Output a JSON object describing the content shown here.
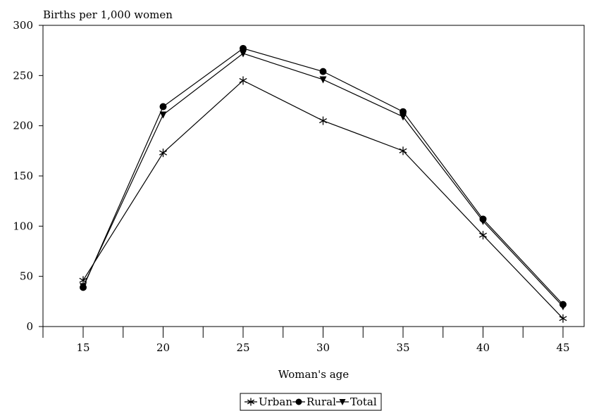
{
  "chart_data": {
    "type": "line",
    "title": "",
    "ylabel": "Births per 1,000 women",
    "xlabel": "Woman's age",
    "x": [
      15,
      20,
      25,
      30,
      35,
      40,
      45
    ],
    "x_ticks": [
      "15",
      "20",
      "25",
      "30",
      "35",
      "40",
      "45"
    ],
    "ylim": [
      0,
      300
    ],
    "y_ticks": [
      "0",
      "50",
      "100",
      "150",
      "200",
      "250",
      "300"
    ],
    "grid": false,
    "legend_position": "bottom-center",
    "series": [
      {
        "name": "Urban",
        "marker": "asterisk",
        "values": [
          46,
          173,
          245,
          205,
          175,
          91,
          8
        ]
      },
      {
        "name": "Rural",
        "marker": "circle",
        "values": [
          39,
          219,
          277,
          254,
          214,
          107,
          22
        ]
      },
      {
        "name": "Total",
        "marker": "triangle-down",
        "values": [
          40,
          211,
          272,
          246,
          209,
          105,
          20
        ]
      }
    ],
    "line_color": "#000000"
  }
}
